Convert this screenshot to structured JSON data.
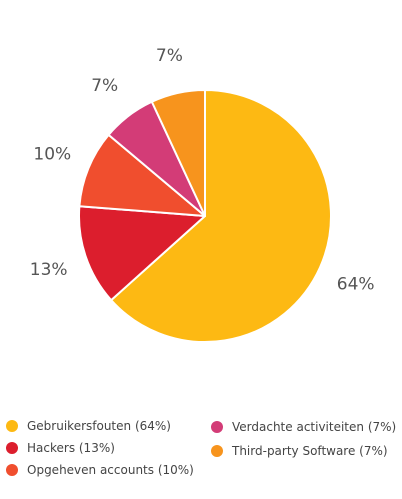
{
  "chart_data": {
    "type": "pie",
    "title": "",
    "legend_position": "bottom",
    "slices": [
      {
        "name": "Gebruikersfouten",
        "value": 64,
        "label": "64%",
        "legend": "Gebruikersfouten (64%)",
        "color": "#FDB913"
      },
      {
        "name": "Hackers",
        "value": 13,
        "label": "13%",
        "legend": "Hackers (13%)",
        "color": "#DC1E2D"
      },
      {
        "name": "Opgeheven accounts",
        "value": 10,
        "label": "10%",
        "legend": "Opgeheven accounts (10%)",
        "color": "#F04E2E"
      },
      {
        "name": "Verdachte activiteiten",
        "value": 7,
        "label": "7%",
        "legend": "Verdachte activiteiten (7%)",
        "color": "#D33C77"
      },
      {
        "name": "Third-party Software",
        "value": 7,
        "label": "7%",
        "legend": "Third-party Software (7%)",
        "color": "#F7941D"
      }
    ]
  }
}
